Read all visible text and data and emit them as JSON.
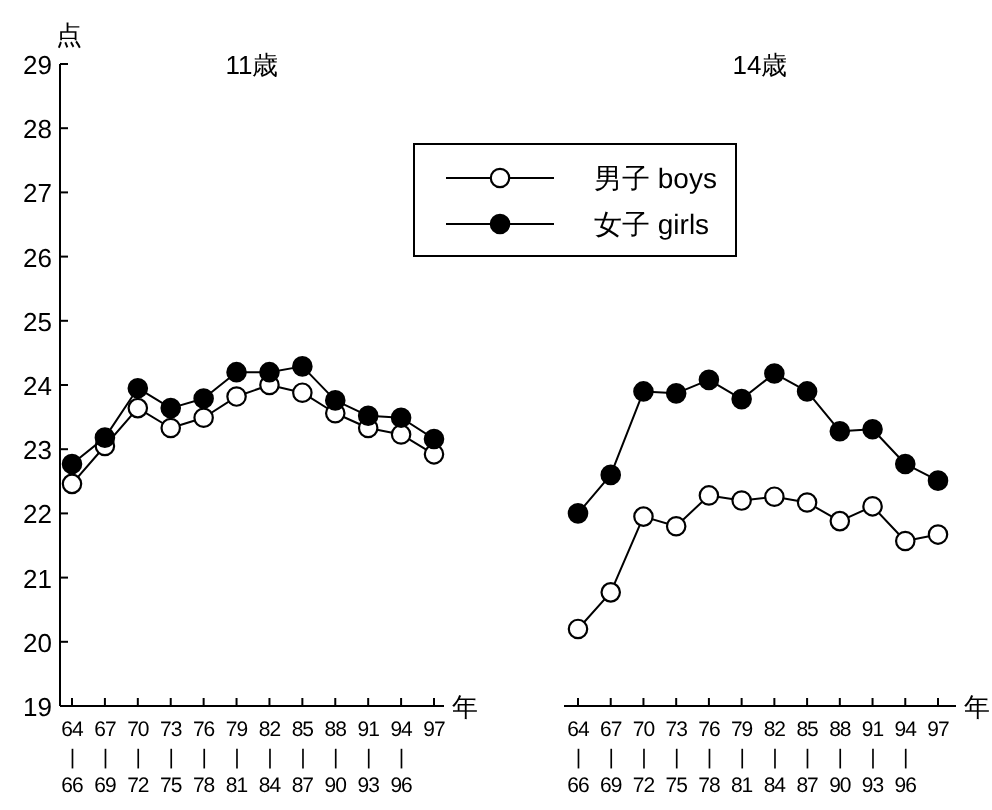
{
  "chart_data": [
    {
      "type": "line",
      "title": "11歳",
      "ylabel": "点",
      "xlabel": "年",
      "categories": [
        "64\n|\n66",
        "67\n|\n69",
        "70\n|\n72",
        "73\n|\n75",
        "76\n|\n78",
        "79\n|\n81",
        "82\n|\n84",
        "85\n|\n87",
        "88\n|\n90",
        "91\n|\n93",
        "94\n|\n96",
        "97"
      ],
      "ylim": [
        19,
        29
      ],
      "yticks": [
        19,
        20,
        21,
        22,
        23,
        24,
        25,
        26,
        27,
        28,
        29
      ],
      "marker": "circle",
      "series": [
        {
          "color": "#ffffff",
          "values": [
            22.46,
            23.05,
            23.64,
            23.33,
            23.49,
            23.82,
            24.0,
            23.88,
            23.56,
            23.33,
            23.23,
            22.92
          ]
        },
        {
          "color": "#000000",
          "values": [
            22.77,
            23.18,
            23.95,
            23.64,
            23.79,
            24.2,
            24.2,
            24.29,
            23.76,
            23.52,
            23.49,
            23.16
          ]
        }
      ]
    },
    {
      "type": "line",
      "title": "14歳",
      "xlabel": "年",
      "categories": [
        "64\n|\n66",
        "67\n|\n69",
        "70\n|\n72",
        "73\n|\n75",
        "76\n|\n78",
        "79\n|\n81",
        "82\n|\n84",
        "85\n|\n87",
        "88\n|\n90",
        "91\n|\n93",
        "94\n|\n96",
        "97"
      ],
      "ylim": [
        19,
        29
      ],
      "tick_labels": "x",
      "marker": "circle",
      "legend": "top left",
      "series": [
        {
          "name": "男子 boys",
          "color": "#ffffff",
          "values": [
            20.2,
            20.77,
            21.95,
            21.8,
            22.28,
            22.2,
            22.26,
            22.17,
            21.88,
            22.11,
            21.57,
            21.67
          ]
        },
        {
          "name": "女子 girls",
          "color": "#000000",
          "values": [
            22.0,
            22.6,
            23.9,
            23.87,
            24.08,
            23.78,
            24.18,
            23.9,
            23.28,
            23.31,
            22.77,
            22.51
          ]
        }
      ]
    }
  ]
}
